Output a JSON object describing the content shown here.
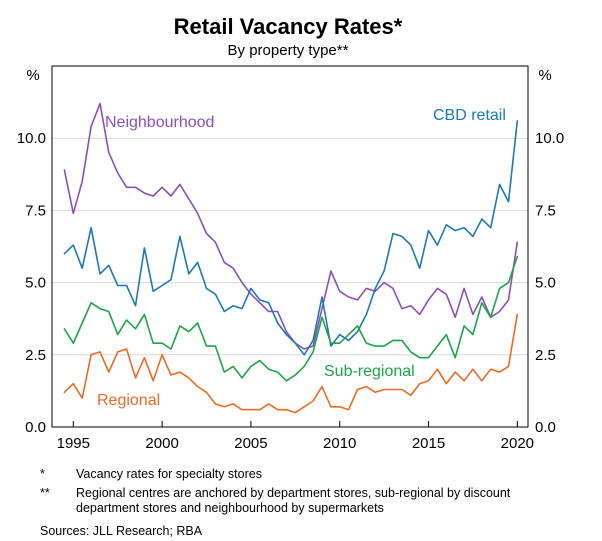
{
  "chart_data": {
    "type": "line",
    "title": "Retail Vacancy Rates*",
    "subtitle": "By property type**",
    "ylabel_left": "%",
    "ylabel_right": "%",
    "xlim": [
      1993.8,
      2020.6
    ],
    "ylim": [
      0,
      12.5
    ],
    "x_ticks": [
      1995,
      2000,
      2005,
      2010,
      2015,
      2020
    ],
    "x_tick_labels": [
      "1995",
      "2000",
      "2005",
      "2010",
      "2015",
      "2020"
    ],
    "y_ticks": [
      0,
      2.5,
      5,
      7.5,
      10
    ],
    "y_tick_labels_left": [
      "0.0",
      "2.5",
      "5.0",
      "7.5",
      "10.0"
    ],
    "y_tick_labels_right": [
      "0.0",
      "2.5",
      "5.0",
      "7.5",
      "10.0"
    ],
    "grid": true,
    "x": [
      1994.5,
      1995.0,
      1995.5,
      1996.0,
      1996.5,
      1997.0,
      1997.5,
      1998.0,
      1998.5,
      1999.0,
      1999.5,
      2000.0,
      2000.5,
      2001.0,
      2001.5,
      2002.0,
      2002.5,
      2003.0,
      2003.5,
      2004.0,
      2004.5,
      2005.0,
      2005.5,
      2006.0,
      2006.5,
      2007.0,
      2007.5,
      2008.0,
      2008.5,
      2009.0,
      2009.5,
      2010.0,
      2010.5,
      2011.0,
      2011.5,
      2012.0,
      2012.5,
      2013.0,
      2013.5,
      2014.0,
      2014.5,
      2015.0,
      2015.5,
      2016.0,
      2016.5,
      2017.0,
      2017.5,
      2018.0,
      2018.5,
      2019.0,
      2019.5,
      2020.0
    ],
    "series": [
      {
        "name": "Neighbourhood",
        "color": "#8b4fb5",
        "values": [
          8.9,
          7.4,
          8.5,
          10.4,
          11.2,
          9.5,
          8.8,
          8.3,
          8.3,
          8.1,
          8.0,
          8.3,
          8.0,
          8.4,
          7.9,
          7.4,
          6.7,
          6.4,
          5.7,
          5.5,
          5.0,
          4.6,
          4.3,
          4.0,
          4.0,
          3.3,
          2.9,
          2.7,
          2.8,
          4.1,
          5.4,
          4.7,
          4.5,
          4.4,
          4.8,
          4.7,
          5.0,
          4.8,
          4.1,
          4.2,
          3.9,
          4.4,
          4.8,
          4.6,
          3.8,
          4.8,
          3.9,
          4.5,
          3.8,
          4.0,
          4.4,
          6.4
        ]
      },
      {
        "name": "CBD retail",
        "color": "#1e78b4",
        "values": [
          6.0,
          6.3,
          5.5,
          6.9,
          5.3,
          5.6,
          4.9,
          4.9,
          4.2,
          6.2,
          4.7,
          4.9,
          5.1,
          6.6,
          5.3,
          5.7,
          4.8,
          4.6,
          4.0,
          4.2,
          4.1,
          4.8,
          4.4,
          4.3,
          3.6,
          3.2,
          2.9,
          2.5,
          3.0,
          4.5,
          2.8,
          3.2,
          3.0,
          3.3,
          3.9,
          4.8,
          5.4,
          6.7,
          6.6,
          6.3,
          5.5,
          6.8,
          6.3,
          7.0,
          6.8,
          6.9,
          6.6,
          7.2,
          6.9,
          8.4,
          7.8,
          10.6
        ]
      },
      {
        "name": "Sub-regional",
        "color": "#1ea346",
        "values": [
          3.4,
          2.9,
          3.6,
          4.3,
          4.1,
          4.0,
          3.2,
          3.7,
          3.4,
          3.9,
          2.9,
          2.9,
          2.7,
          3.5,
          3.3,
          3.6,
          2.8,
          2.8,
          1.9,
          2.1,
          1.7,
          2.1,
          2.3,
          2.0,
          1.9,
          1.6,
          1.8,
          2.1,
          2.6,
          3.8,
          2.9,
          2.9,
          3.2,
          3.5,
          2.9,
          2.8,
          2.8,
          3.0,
          3.0,
          2.6,
          2.4,
          2.4,
          2.8,
          3.2,
          2.4,
          3.5,
          3.2,
          4.3,
          3.8,
          4.8,
          5.0,
          5.9
        ]
      },
      {
        "name": "Regional",
        "color": "#ea6b23",
        "values": [
          1.2,
          1.5,
          1.0,
          2.5,
          2.6,
          1.9,
          2.6,
          2.7,
          1.7,
          2.4,
          1.6,
          2.5,
          1.8,
          1.9,
          1.7,
          1.4,
          1.2,
          0.8,
          0.7,
          0.8,
          0.6,
          0.6,
          0.6,
          0.8,
          0.6,
          0.6,
          0.5,
          0.7,
          0.9,
          1.4,
          0.7,
          0.7,
          0.6,
          1.3,
          1.4,
          1.2,
          1.3,
          1.3,
          1.3,
          1.1,
          1.5,
          1.6,
          2.0,
          1.5,
          1.9,
          1.6,
          2.0,
          1.6,
          2.0,
          1.9,
          2.1,
          3.9
        ]
      }
    ],
    "series_labels": [
      "Neighbourhood",
      "CBD retail",
      "Sub-regional",
      "Regional"
    ]
  },
  "notes": [
    {
      "marker": "*",
      "text": "Vacancy rates for specialty stores"
    },
    {
      "marker": "**",
      "text": "Regional centres are anchored by department stores, sub-regional by discount department stores and neighbourhood by supermarkets"
    }
  ],
  "sources": "Sources: JLL Research; RBA"
}
